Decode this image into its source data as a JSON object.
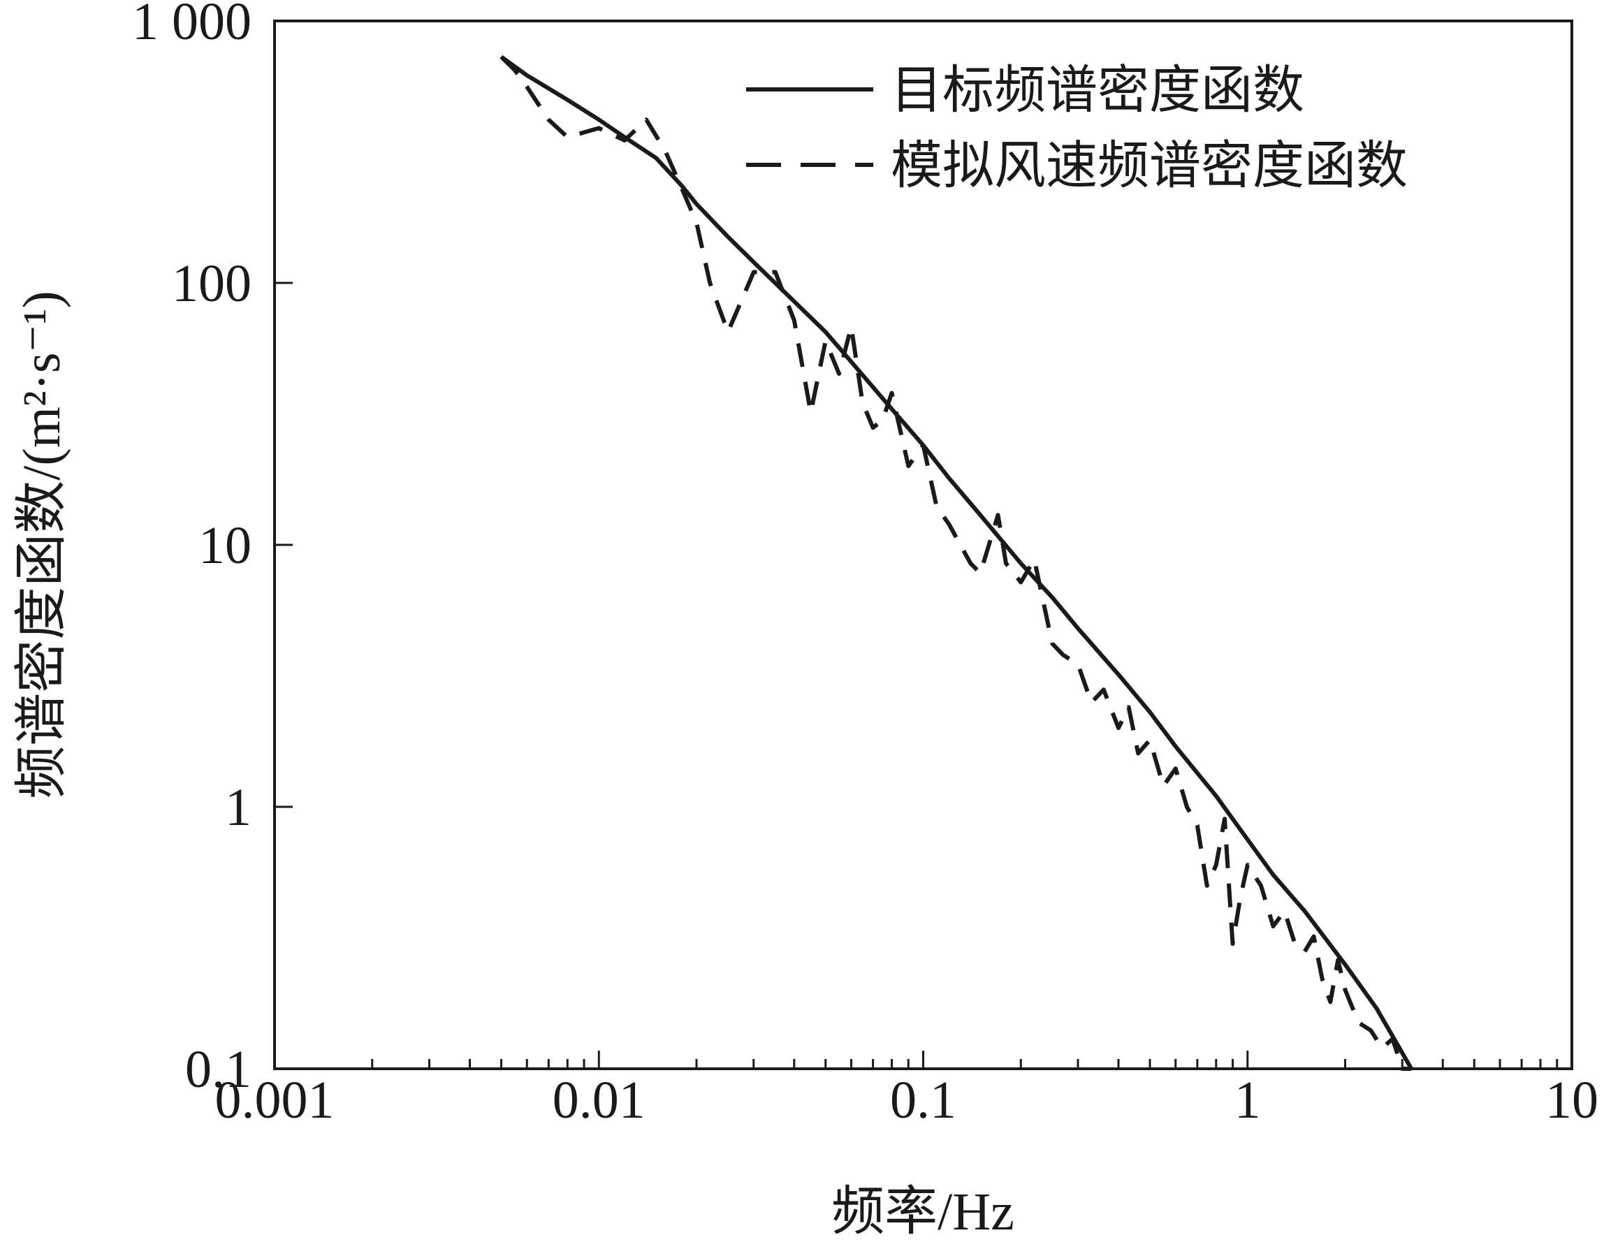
{
  "chart_data": {
    "type": "line",
    "xlabel": "频率/Hz",
    "ylabel": "频谱密度函数/(m²·s⁻¹)",
    "x_scale": "log",
    "y_scale": "log",
    "xlim": [
      0.001,
      10
    ],
    "ylim": [
      0.1,
      1000
    ],
    "x_ticks": [
      {
        "value": 0.001,
        "label": "0.001"
      },
      {
        "value": 0.01,
        "label": "0.01"
      },
      {
        "value": 0.1,
        "label": "0.1"
      },
      {
        "value": 1,
        "label": "1"
      },
      {
        "value": 10,
        "label": "10"
      }
    ],
    "y_ticks": [
      {
        "value": 0.1,
        "label": "0.1"
      },
      {
        "value": 1,
        "label": "1"
      },
      {
        "value": 10,
        "label": "10"
      },
      {
        "value": 100,
        "label": "100"
      },
      {
        "value": 1000,
        "label": "1 000"
      }
    ],
    "grid": false,
    "legend_position": "top-right",
    "colors": {
      "line": "#1a1a1a",
      "axes": "#1a1a1a",
      "background": "#ffffff"
    },
    "series": [
      {
        "name": "目标频谱密度函数",
        "style": "solid",
        "x": [
          0.005,
          0.006,
          0.008,
          0.01,
          0.012,
          0.015,
          0.018,
          0.02,
          0.025,
          0.03,
          0.04,
          0.05,
          0.06,
          0.07,
          0.08,
          0.1,
          0.12,
          0.15,
          0.2,
          0.25,
          0.3,
          0.4,
          0.5,
          0.6,
          0.8,
          1,
          1.2,
          1.5,
          2,
          2.5,
          3.2
        ],
        "y": [
          730,
          620,
          500,
          420,
          360,
          300,
          235,
          200,
          150,
          120,
          85,
          65,
          50,
          40,
          33,
          24,
          18,
          13,
          8.5,
          6.3,
          4.8,
          3.2,
          2.3,
          1.7,
          1.1,
          0.75,
          0.55,
          0.4,
          0.25,
          0.17,
          0.1
        ]
      },
      {
        "name": "模拟风速频谱密度函数",
        "style": "dashed",
        "x": [
          0.005,
          0.0055,
          0.006,
          0.007,
          0.008,
          0.01,
          0.012,
          0.014,
          0.016,
          0.018,
          0.02,
          0.022,
          0.025,
          0.028,
          0.03,
          0.035,
          0.04,
          0.045,
          0.05,
          0.055,
          0.06,
          0.065,
          0.07,
          0.075,
          0.08,
          0.09,
          0.1,
          0.11,
          0.12,
          0.14,
          0.15,
          0.17,
          0.18,
          0.2,
          0.22,
          0.25,
          0.27,
          0.3,
          0.33,
          0.36,
          0.4,
          0.43,
          0.46,
          0.5,
          0.55,
          0.6,
          0.65,
          0.7,
          0.75,
          0.8,
          0.85,
          0.9,
          0.95,
          1,
          1.1,
          1.2,
          1.3,
          1.4,
          1.5,
          1.6,
          1.7,
          1.8,
          1.9,
          2,
          2.2,
          2.4,
          2.6,
          2.8,
          3,
          3.2
        ],
        "y": [
          730,
          650,
          560,
          420,
          360,
          390,
          350,
          420,
          320,
          230,
          170,
          100,
          65,
          90,
          110,
          110,
          72,
          32,
          60,
          45,
          68,
          35,
          28,
          30,
          38,
          20,
          24,
          14,
          12,
          8.5,
          7.8,
          13,
          8.5,
          7.2,
          8.8,
          4.2,
          3.8,
          3.5,
          2.5,
          2.8,
          2,
          2.4,
          1.6,
          1.8,
          1.2,
          1.4,
          1.0,
          0.85,
          0.5,
          0.6,
          0.9,
          0.3,
          0.45,
          0.6,
          0.5,
          0.35,
          0.4,
          0.3,
          0.28,
          0.32,
          0.22,
          0.18,
          0.26,
          0.2,
          0.15,
          0.14,
          0.12,
          0.13,
          0.1,
          0.1
        ]
      }
    ]
  }
}
